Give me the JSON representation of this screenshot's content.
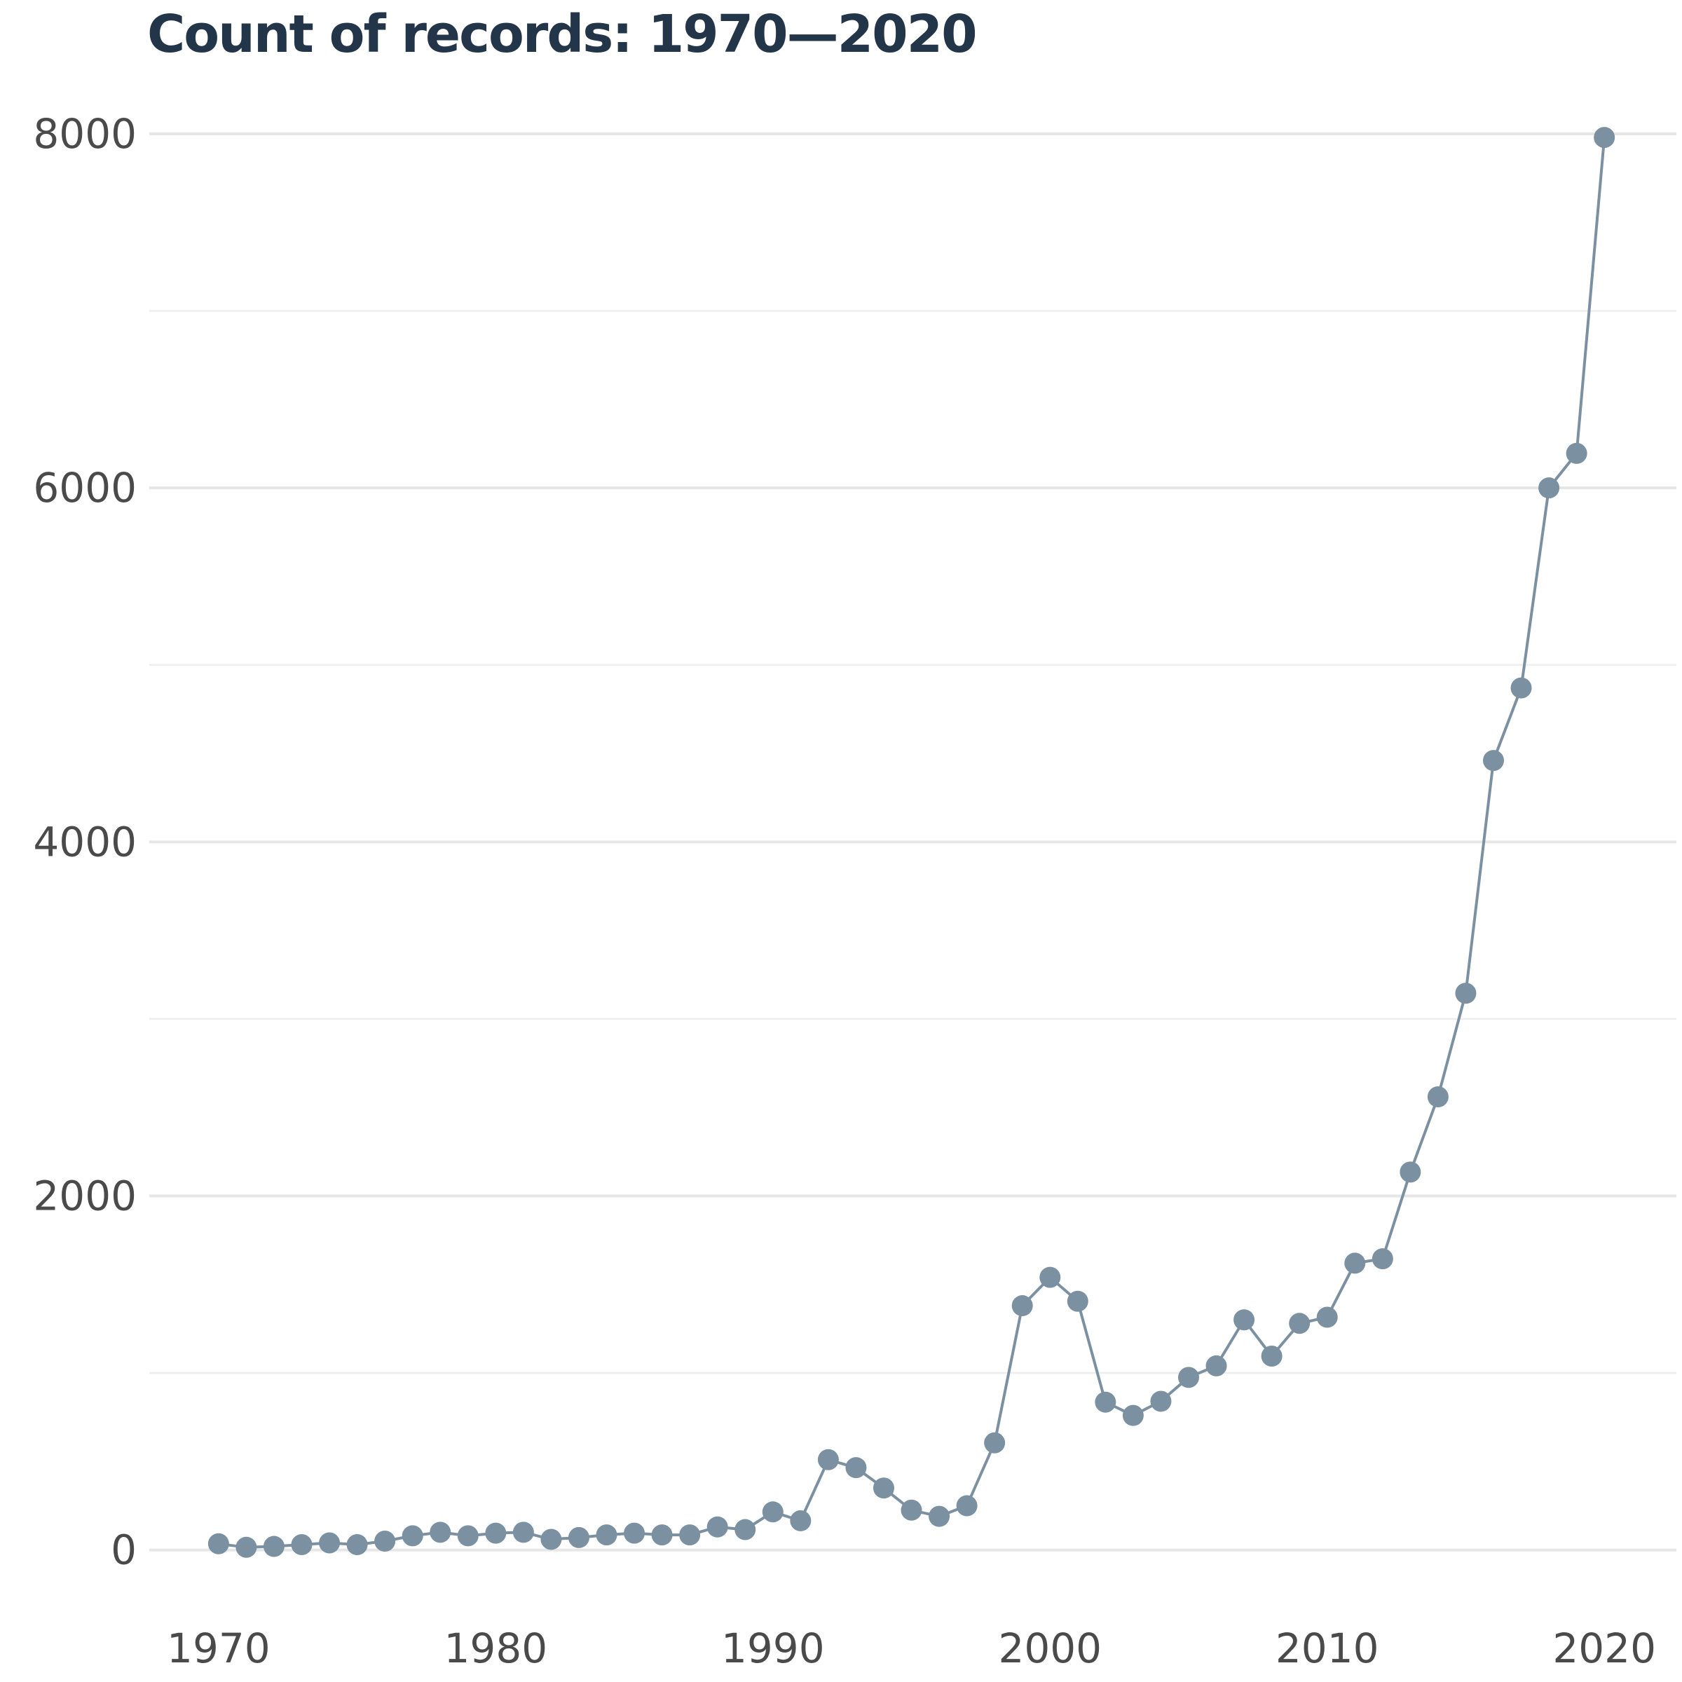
{
  "chart_data": {
    "type": "line",
    "title": "Count of records: 1970—2020",
    "xlabel": "",
    "ylabel": "",
    "xlim": [
      1967.5,
      2022.6
    ],
    "ylim": [
      -350,
      8400
    ],
    "x_ticks": [
      1970,
      1980,
      1990,
      2000,
      2010,
      2020
    ],
    "y_ticks": [
      0,
      2000,
      4000,
      6000,
      8000
    ],
    "y_minor_ticks": [
      1000,
      3000,
      5000,
      7000
    ],
    "grid": true,
    "legend": "none",
    "colors": {
      "series": "#7b91a1",
      "title": "#233549",
      "ticks": "#4a4a4a",
      "grid": "#e6e6e6"
    },
    "series": [
      {
        "x": [
          1970,
          1971,
          1972,
          1973,
          1974,
          1975,
          1976,
          1977,
          1978,
          1979,
          1980,
          1981,
          1982,
          1983,
          1984,
          1985,
          1986,
          1987,
          1988,
          1989,
          1990,
          1991,
          1992,
          1993,
          1994,
          1995,
          1996,
          1997,
          1998,
          1999,
          2000,
          2001,
          2002,
          2003,
          2004,
          2005,
          2006,
          2007,
          2008,
          2009,
          2010,
          2011,
          2012,
          2013,
          2014,
          2015,
          2016,
          2017,
          2018,
          2019,
          2020
        ],
        "y": [
          35,
          15,
          20,
          30,
          40,
          30,
          50,
          80,
          100,
          80,
          95,
          100,
          60,
          70,
          85,
          95,
          85,
          85,
          130,
          115,
          215,
          165,
          510,
          465,
          350,
          225,
          190,
          250,
          605,
          1380,
          1540,
          1405,
          835,
          760,
          840,
          975,
          1040,
          1300,
          1095,
          1280,
          1315,
          1620,
          1645,
          2135,
          2560,
          3145,
          4460,
          4870,
          6000,
          6195,
          7980
        ]
      }
    ]
  }
}
